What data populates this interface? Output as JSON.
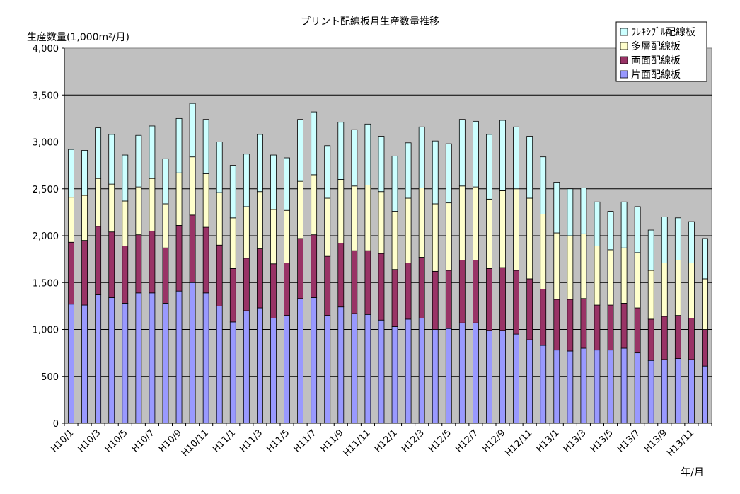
{
  "chart_data": {
    "type": "bar",
    "stacked": true,
    "title": "プリント配線板月生産数量推移",
    "ylabel": "生産数量(1,000m²/月)",
    "xlabel": "年/月",
    "ylim": [
      0,
      4000
    ],
    "yticks": [
      0,
      500,
      1000,
      1500,
      2000,
      2500,
      3000,
      3500,
      4000
    ],
    "ytick_labels": [
      "0",
      "500",
      "1,000",
      "1,500",
      "2,000",
      "2,500",
      "3,000",
      "3,500",
      "4,000"
    ],
    "grid": true,
    "legend_position": "top-right",
    "plot_background": "#c0c0c0",
    "categories": [
      "H10/1",
      "H10/2",
      "H10/3",
      "H10/4",
      "H10/5",
      "H10/6",
      "H10/7",
      "H10/8",
      "H10/9",
      "H10/10",
      "H10/11",
      "H10/12",
      "H11/1",
      "H11/2",
      "H11/3",
      "H11/4",
      "H11/5",
      "H11/6",
      "H11/7",
      "H11/8",
      "H11/9",
      "H11/10",
      "H11/11",
      "H11/12",
      "H12/1",
      "H12/2",
      "H12/3",
      "H12/4",
      "H12/5",
      "H12/6",
      "H12/7",
      "H12/8",
      "H12/9",
      "H12/10",
      "H12/11",
      "H12/12",
      "H13/1",
      "H13/2",
      "H13/3",
      "H13/4",
      "H13/5",
      "H13/6",
      "H13/7",
      "H13/8",
      "H13/9",
      "H13/10",
      "H13/11",
      "H13/12"
    ],
    "shown_tick_labels": [
      "H10/1",
      "H10/3",
      "H10/5",
      "H10/7",
      "H10/9",
      "H10/11",
      "H11/1",
      "H11/3",
      "H11/5",
      "H11/7",
      "H11/9",
      "H11/11",
      "H12/1",
      "H12/3",
      "H12/5",
      "H12/7",
      "H12/9",
      "H12/11",
      "H13/1",
      "H13/3",
      "H13/5",
      "H13/7",
      "H13/9",
      "H13/11"
    ],
    "series": [
      {
        "name": "片面配線板",
        "color": "#9999ff",
        "values": [
          1270,
          1260,
          1370,
          1340,
          1280,
          1390,
          1390,
          1280,
          1410,
          1500,
          1390,
          1250,
          1080,
          1200,
          1230,
          1120,
          1150,
          1330,
          1340,
          1150,
          1240,
          1170,
          1160,
          1100,
          1030,
          1110,
          1120,
          1000,
          1010,
          1070,
          1070,
          990,
          990,
          950,
          890,
          830,
          780,
          770,
          800,
          780,
          780,
          800,
          750,
          670,
          680,
          690,
          680,
          610
        ]
      },
      {
        "name": "両面配線板",
        "color": "#993366",
        "values": [
          660,
          690,
          730,
          700,
          610,
          620,
          660,
          590,
          700,
          720,
          700,
          650,
          570,
          560,
          630,
          580,
          560,
          640,
          670,
          630,
          680,
          670,
          680,
          710,
          610,
          600,
          650,
          620,
          620,
          670,
          670,
          660,
          670,
          680,
          650,
          600,
          540,
          550,
          530,
          480,
          480,
          480,
          480,
          440,
          460,
          460,
          440,
          390
        ]
      },
      {
        "name": "多層配線板",
        "color": "#ffffcc",
        "values": [
          480,
          480,
          510,
          510,
          480,
          510,
          560,
          470,
          560,
          620,
          570,
          560,
          540,
          550,
          610,
          580,
          560,
          610,
          640,
          620,
          680,
          690,
          700,
          660,
          620,
          690,
          740,
          720,
          720,
          790,
          780,
          740,
          820,
          870,
          860,
          800,
          710,
          680,
          690,
          630,
          590,
          590,
          590,
          520,
          570,
          590,
          590,
          540
        ]
      },
      {
        "name": "ﾌﾚｷｼﾌﾞﾙ配線板",
        "color": "#ccffff",
        "values": [
          510,
          480,
          540,
          530,
          490,
          550,
          560,
          480,
          580,
          570,
          580,
          540,
          560,
          560,
          610,
          580,
          560,
          660,
          670,
          560,
          610,
          600,
          650,
          590,
          590,
          590,
          650,
          670,
          630,
          710,
          700,
          690,
          750,
          660,
          660,
          610,
          540,
          500,
          490,
          470,
          410,
          490,
          490,
          430,
          490,
          450,
          440,
          430
        ]
      }
    ]
  }
}
